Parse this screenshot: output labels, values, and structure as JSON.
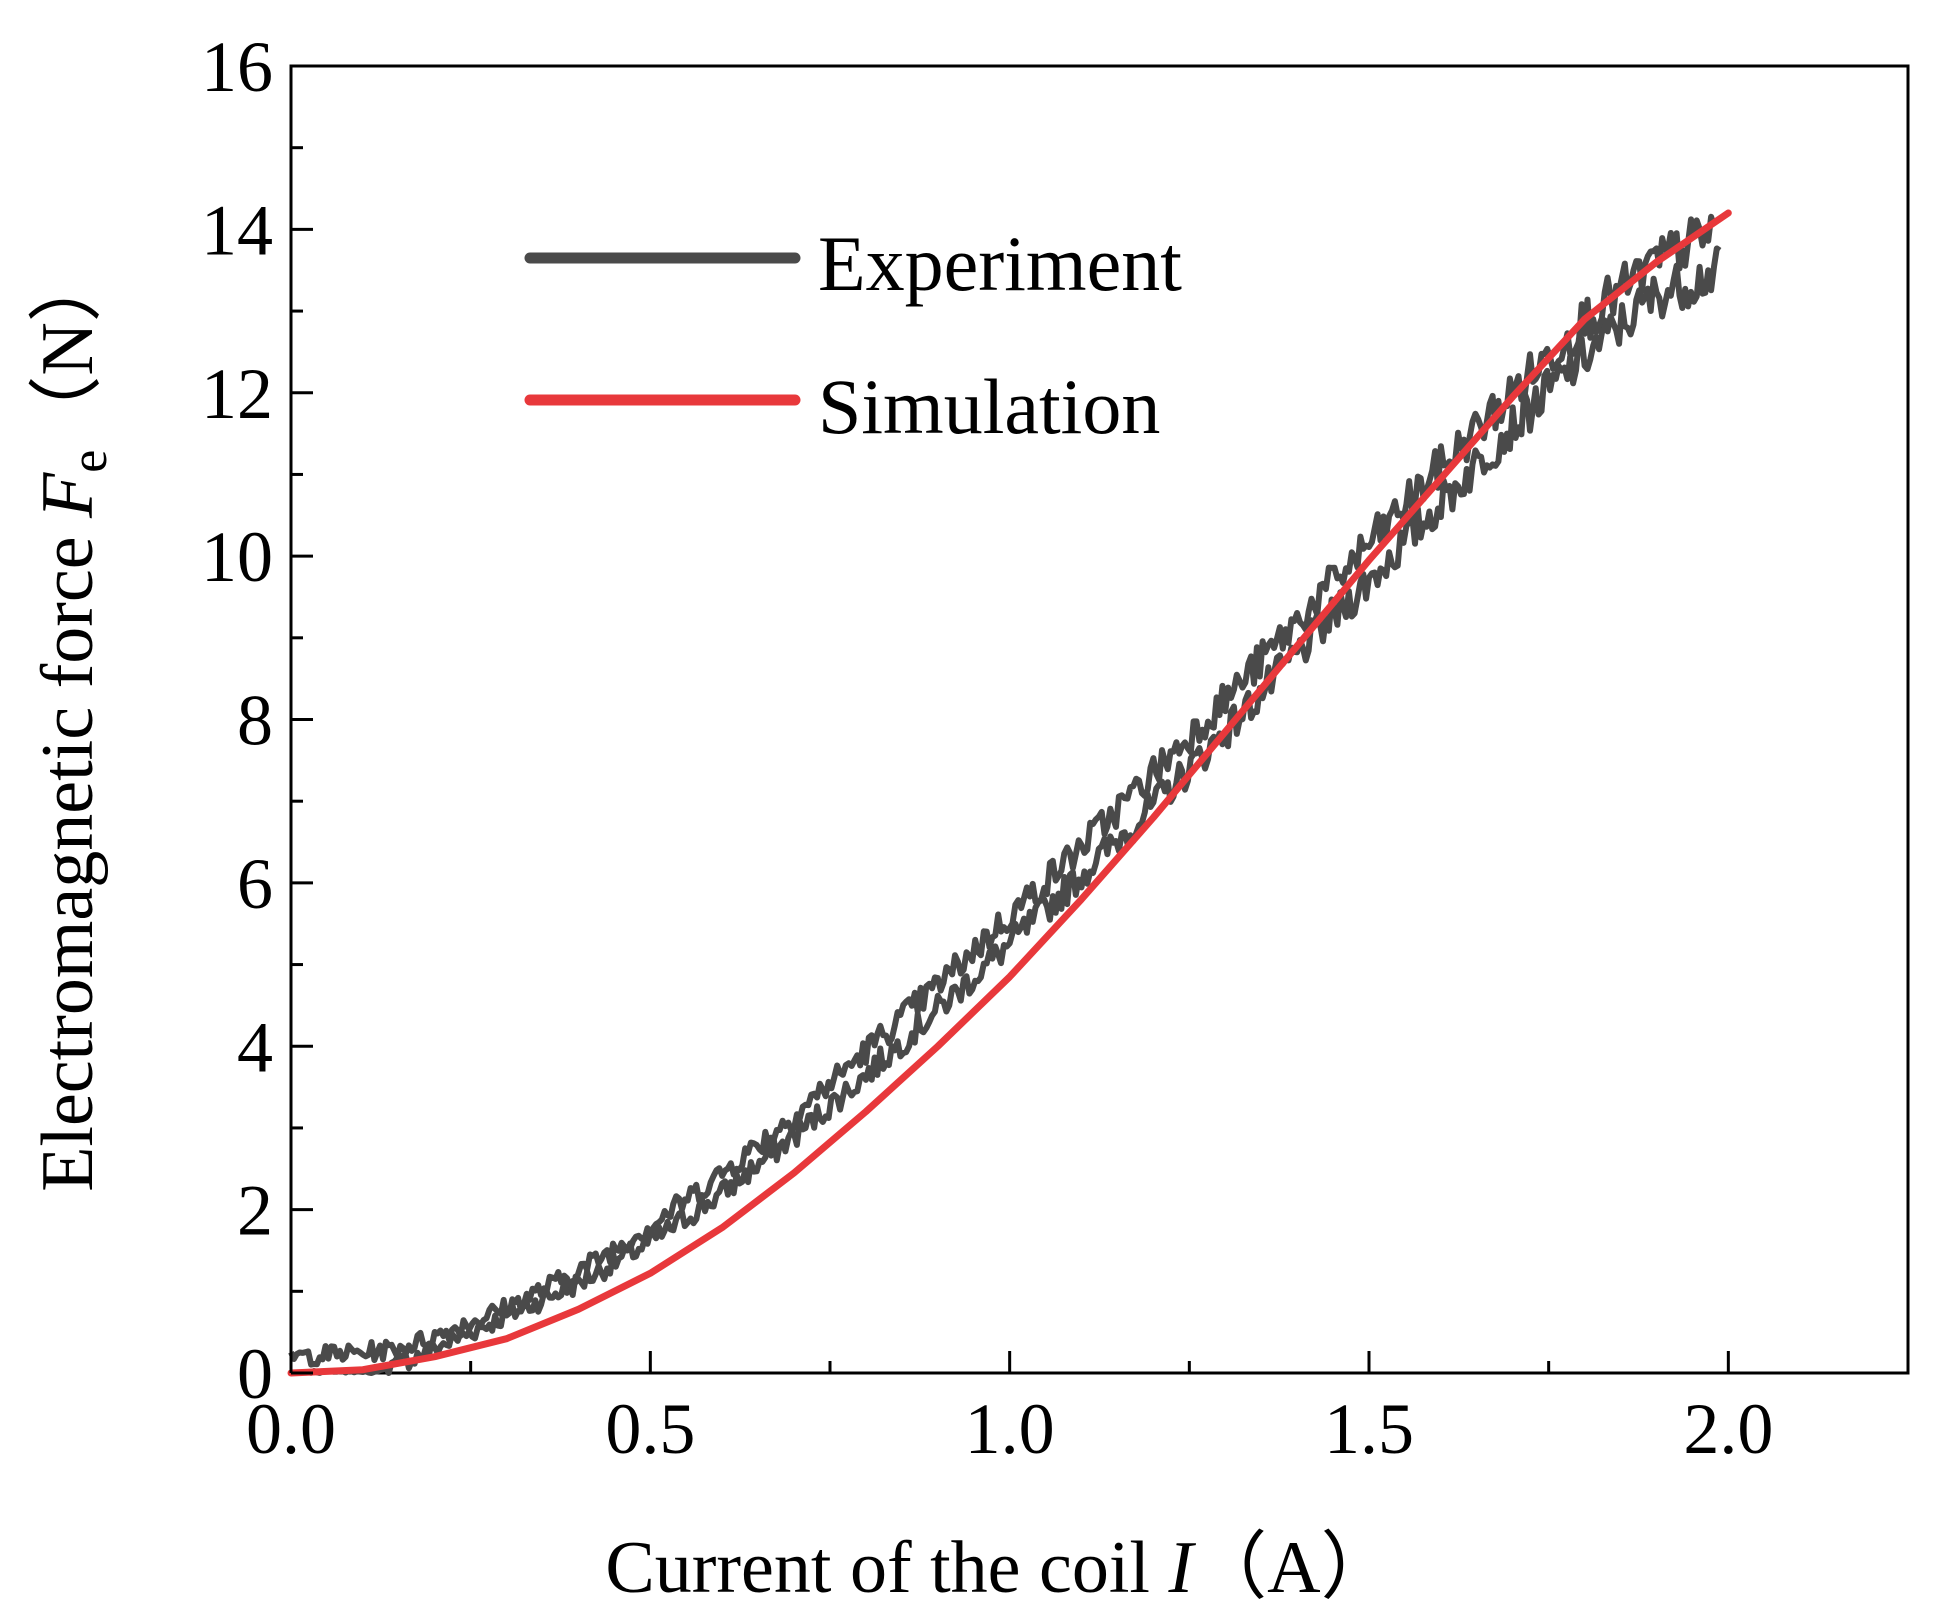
{
  "chart_data": {
    "type": "line",
    "title": "",
    "xlabel": {
      "main": "Current of the coil ",
      "symbol": "I",
      "unit": "（A）"
    },
    "ylabel": {
      "main": "Electromagnetic force ",
      "symbol": "F",
      "subscript": "e",
      "unit": "（N）"
    },
    "xlim": [
      0.0,
      2.25
    ],
    "ylim": [
      0,
      16
    ],
    "x_ticks": [
      "0.0",
      "0.5",
      "1.0",
      "1.5",
      "2.0"
    ],
    "y_ticks": [
      "0",
      "2",
      "4",
      "6",
      "8",
      "10",
      "12",
      "14",
      "16"
    ],
    "x_tick_values": [
      0.0,
      0.5,
      1.0,
      1.5,
      2.0
    ],
    "y_tick_values": [
      0,
      2,
      4,
      6,
      8,
      10,
      12,
      14,
      16
    ],
    "x_minor_step": 0.25,
    "y_minor_step": 1,
    "grid": false,
    "legend_position": "top-left",
    "series": [
      {
        "name": "Experiment",
        "color": "#4a4a4a",
        "style": "noisy hysteresis loop (rising and falling branches)",
        "upper": {
          "x": [
            0.0,
            0.1,
            0.15,
            0.2,
            0.3,
            0.4,
            0.5,
            0.6,
            0.7,
            0.8,
            0.9,
            1.0,
            1.1,
            1.2,
            1.3,
            1.4,
            1.5,
            1.6,
            1.7,
            1.8,
            1.9,
            1.98
          ],
          "y": [
            0.2,
            0.25,
            0.3,
            0.45,
            0.8,
            1.25,
            1.8,
            2.45,
            3.15,
            3.95,
            4.75,
            5.6,
            6.45,
            7.35,
            8.25,
            9.2,
            10.15,
            11.1,
            12.0,
            12.9,
            13.6,
            14.0
          ]
        },
        "lower": {
          "x": [
            0.02,
            0.12,
            0.2,
            0.3,
            0.4,
            0.5,
            0.6,
            0.7,
            0.8,
            0.9,
            1.0,
            1.1,
            1.2,
            1.3,
            1.4,
            1.5,
            1.6,
            1.7,
            1.8,
            1.9,
            1.99
          ],
          "y": [
            0.0,
            0.0,
            0.3,
            0.7,
            1.1,
            1.6,
            2.2,
            2.9,
            3.65,
            4.45,
            5.25,
            6.1,
            6.95,
            7.85,
            8.8,
            9.7,
            10.65,
            11.6,
            12.45,
            13.2,
            13.5
          ]
        }
      },
      {
        "name": "Simulation",
        "color": "#e8383b",
        "x": [
          0.0,
          0.1,
          0.2,
          0.3,
          0.4,
          0.5,
          0.6,
          0.7,
          0.8,
          0.9,
          1.0,
          1.1,
          1.2,
          1.3,
          1.4,
          1.5,
          1.6,
          1.7,
          1.8,
          1.9,
          2.0
        ],
        "y": [
          0.0,
          0.04,
          0.2,
          0.42,
          0.78,
          1.22,
          1.78,
          2.45,
          3.2,
          4.0,
          4.85,
          5.8,
          6.8,
          7.85,
          8.9,
          9.95,
          10.95,
          11.95,
          12.9,
          13.6,
          14.2
        ]
      }
    ]
  }
}
